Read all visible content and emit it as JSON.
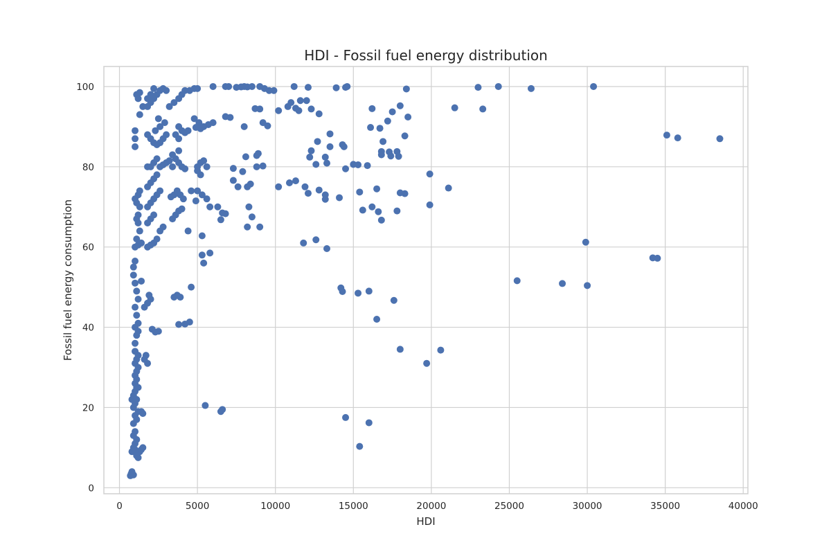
{
  "colors": {
    "point": "#4c72b0",
    "grid": "#d0d0d0",
    "text": "#262626",
    "background": "#ffffff"
  },
  "chart_data": {
    "type": "scatter",
    "title": "HDI - Fossil fuel energy distribution",
    "xlabel": "HDI",
    "ylabel": "Fossil fuel energy consumption",
    "xlim": [
      -1000,
      40300
    ],
    "ylim": [
      -1.5,
      105
    ],
    "xticks": [
      0,
      5000,
      10000,
      15000,
      20000,
      25000,
      30000,
      35000,
      40000
    ],
    "yticks": [
      0,
      20,
      40,
      60,
      80,
      100
    ],
    "grid": true,
    "legend": "none",
    "points": [
      [
        700,
        3
      ],
      [
        750,
        3.5
      ],
      [
        800,
        4
      ],
      [
        900,
        3.2
      ],
      [
        800,
        9
      ],
      [
        900,
        10
      ],
      [
        1000,
        9.5
      ],
      [
        1100,
        8
      ],
      [
        1200,
        7.5
      ],
      [
        1300,
        9
      ],
      [
        1400,
        9.5
      ],
      [
        1500,
        10
      ],
      [
        1000,
        11
      ],
      [
        1100,
        12
      ],
      [
        900,
        13
      ],
      [
        1000,
        14
      ],
      [
        900,
        16
      ],
      [
        1000,
        18
      ],
      [
        1100,
        17
      ],
      [
        1200,
        19
      ],
      [
        900,
        20
      ],
      [
        1000,
        21
      ],
      [
        1100,
        22
      ],
      [
        800,
        22
      ],
      [
        900,
        23
      ],
      [
        1000,
        24
      ],
      [
        1100,
        25
      ],
      [
        1200,
        25
      ],
      [
        1000,
        26
      ],
      [
        1100,
        27
      ],
      [
        1000,
        28
      ],
      [
        1100,
        29
      ],
      [
        1200,
        30
      ],
      [
        1000,
        31
      ],
      [
        1100,
        32
      ],
      [
        1200,
        33
      ],
      [
        1500,
        18.5
      ],
      [
        1400,
        19
      ],
      [
        1000,
        34
      ],
      [
        1000,
        36
      ],
      [
        1100,
        38
      ],
      [
        1200,
        39
      ],
      [
        1000,
        40
      ],
      [
        1200,
        41
      ],
      [
        1100,
        43
      ],
      [
        1000,
        45
      ],
      [
        1200,
        47
      ],
      [
        1100,
        49
      ],
      [
        1000,
        51
      ],
      [
        1400,
        51.5
      ],
      [
        900,
        53
      ],
      [
        900,
        55
      ],
      [
        1000,
        56.5
      ],
      [
        1000,
        60
      ],
      [
        1200,
        60.5
      ],
      [
        1400,
        61
      ],
      [
        1100,
        62
      ],
      [
        1300,
        64
      ],
      [
        1200,
        66
      ],
      [
        1100,
        67
      ],
      [
        1200,
        68
      ],
      [
        1300,
        70
      ],
      [
        1100,
        71
      ],
      [
        1000,
        72
      ],
      [
        1200,
        73
      ],
      [
        1300,
        74
      ],
      [
        1800,
        60
      ],
      [
        2000,
        60.5
      ],
      [
        2200,
        61
      ],
      [
        2400,
        62
      ],
      [
        2600,
        64
      ],
      [
        2800,
        65
      ],
      [
        1800,
        66
      ],
      [
        2000,
        67
      ],
      [
        2200,
        68
      ],
      [
        1800,
        70
      ],
      [
        2000,
        71
      ],
      [
        2200,
        72
      ],
      [
        2400,
        73
      ],
      [
        2600,
        74
      ],
      [
        1800,
        75
      ],
      [
        2000,
        76
      ],
      [
        2200,
        77
      ],
      [
        2400,
        78
      ],
      [
        1800,
        80
      ],
      [
        2000,
        80
      ],
      [
        2200,
        81
      ],
      [
        2400,
        82
      ],
      [
        2600,
        80
      ],
      [
        2800,
        80.5
      ],
      [
        3000,
        81
      ],
      [
        3200,
        81.5
      ],
      [
        3400,
        80
      ],
      [
        1600,
        45
      ],
      [
        1800,
        46
      ],
      [
        2000,
        47
      ],
      [
        1900,
        48
      ],
      [
        2100,
        39.5
      ],
      [
        2300,
        38.8
      ],
      [
        2500,
        39
      ],
      [
        1600,
        32
      ],
      [
        1800,
        31
      ],
      [
        1700,
        33
      ],
      [
        1000,
        85
      ],
      [
        1000,
        87
      ],
      [
        1000,
        89
      ],
      [
        1300,
        93
      ],
      [
        1500,
        95
      ],
      [
        1200,
        97
      ],
      [
        1100,
        98
      ],
      [
        1300,
        98.5
      ],
      [
        1800,
        88
      ],
      [
        2000,
        87
      ],
      [
        2200,
        86
      ],
      [
        2400,
        85.5
      ],
      [
        2600,
        86
      ],
      [
        2800,
        87
      ],
      [
        3000,
        88
      ],
      [
        2300,
        89
      ],
      [
        2600,
        90
      ],
      [
        2900,
        91
      ],
      [
        2500,
        92
      ],
      [
        1800,
        95
      ],
      [
        2000,
        96
      ],
      [
        2200,
        97
      ],
      [
        2400,
        98
      ],
      [
        2600,
        99
      ],
      [
        2800,
        99.5
      ],
      [
        3000,
        99
      ],
      [
        2200,
        99.5
      ],
      [
        2000,
        98
      ],
      [
        1800,
        97
      ],
      [
        3200,
        95
      ],
      [
        3500,
        96
      ],
      [
        3800,
        97
      ],
      [
        4000,
        98
      ],
      [
        4200,
        99
      ],
      [
        4500,
        99
      ],
      [
        4800,
        99.5
      ],
      [
        5000,
        99.5
      ],
      [
        3800,
        90
      ],
      [
        4000,
        89
      ],
      [
        4200,
        88.5
      ],
      [
        4400,
        89
      ],
      [
        3600,
        88
      ],
      [
        3800,
        87
      ],
      [
        3400,
        83
      ],
      [
        3600,
        82
      ],
      [
        3800,
        81
      ],
      [
        4000,
        80
      ],
      [
        4200,
        79.5
      ],
      [
        3800,
        84
      ],
      [
        3500,
        73
      ],
      [
        3700,
        74
      ],
      [
        3900,
        73
      ],
      [
        4100,
        72
      ],
      [
        3300,
        72.5
      ],
      [
        3400,
        67
      ],
      [
        3600,
        68
      ],
      [
        3800,
        69
      ],
      [
        4000,
        69.5
      ],
      [
        4400,
        64
      ],
      [
        3500,
        47.5
      ],
      [
        3700,
        48
      ],
      [
        3900,
        47.5
      ],
      [
        4600,
        50
      ],
      [
        3800,
        40.7
      ],
      [
        4200,
        40.8
      ],
      [
        4500,
        41.3
      ],
      [
        4800,
        92
      ],
      [
        5100,
        91
      ],
      [
        5400,
        90
      ],
      [
        5700,
        90.5
      ],
      [
        6000,
        91
      ],
      [
        5200,
        89.5
      ],
      [
        4900,
        89.8
      ],
      [
        5000,
        80
      ],
      [
        5200,
        81
      ],
      [
        5400,
        81.5
      ],
      [
        5600,
        80
      ],
      [
        5000,
        79
      ],
      [
        5200,
        78
      ],
      [
        4600,
        74
      ],
      [
        5000,
        74
      ],
      [
        5300,
        73
      ],
      [
        5600,
        72
      ],
      [
        4900,
        71.5
      ],
      [
        5300,
        62.8
      ],
      [
        5300,
        58
      ],
      [
        5400,
        56
      ],
      [
        5800,
        58.5
      ],
      [
        5800,
        70
      ],
      [
        6300,
        70
      ],
      [
        6500,
        66.8
      ],
      [
        6600,
        68.5
      ],
      [
        6800,
        68.3
      ],
      [
        5500,
        20.5
      ],
      [
        6500,
        19
      ],
      [
        6600,
        19.5
      ],
      [
        6000,
        100
      ],
      [
        6800,
        100
      ],
      [
        7000,
        100
      ],
      [
        7500,
        99.8
      ],
      [
        7800,
        99.9
      ],
      [
        8000,
        100
      ],
      [
        8200,
        99.9
      ],
      [
        8500,
        100
      ],
      [
        9000,
        100
      ],
      [
        9300,
        99.5
      ],
      [
        9600,
        99
      ],
      [
        9900,
        99
      ],
      [
        6800,
        92.5
      ],
      [
        7100,
        92.3
      ],
      [
        8000,
        90
      ],
      [
        8700,
        94.5
      ],
      [
        9000,
        94.4
      ],
      [
        9200,
        91
      ],
      [
        9500,
        90.2
      ],
      [
        7300,
        79.6
      ],
      [
        7900,
        78.8
      ],
      [
        8100,
        82.5
      ],
      [
        8800,
        82.8
      ],
      [
        8900,
        83.3
      ],
      [
        8800,
        80
      ],
      [
        9200,
        80.2
      ],
      [
        7300,
        76.6
      ],
      [
        7600,
        75
      ],
      [
        8200,
        75
      ],
      [
        8400,
        75.7
      ],
      [
        8300,
        70
      ],
      [
        8200,
        65
      ],
      [
        8500,
        67.5
      ],
      [
        9000,
        65
      ],
      [
        10200,
        94
      ],
      [
        10800,
        95
      ],
      [
        11000,
        96
      ],
      [
        11300,
        94.6
      ],
      [
        11500,
        94
      ],
      [
        11600,
        96.5
      ],
      [
        12000,
        96.5
      ],
      [
        12300,
        94.4
      ],
      [
        12800,
        93.2
      ],
      [
        11200,
        100
      ],
      [
        12100,
        99.8
      ],
      [
        13900,
        99.7
      ],
      [
        14500,
        99.8
      ],
      [
        14600,
        100
      ],
      [
        12200,
        82.4
      ],
      [
        12300,
        84
      ],
      [
        12600,
        80.6
      ],
      [
        12700,
        86.3
      ],
      [
        13200,
        82.4
      ],
      [
        13300,
        80.9
      ],
      [
        13500,
        85
      ],
      [
        13500,
        88.2
      ],
      [
        14300,
        85.5
      ],
      [
        14400,
        85
      ],
      [
        14500,
        79.5
      ],
      [
        15000,
        80.6
      ],
      [
        15300,
        80.5
      ],
      [
        15900,
        80.3
      ],
      [
        10200,
        75
      ],
      [
        10900,
        76
      ],
      [
        11300,
        76.5
      ],
      [
        11900,
        75
      ],
      [
        12100,
        73.4
      ],
      [
        12800,
        74.2
      ],
      [
        13200,
        71.9
      ],
      [
        13200,
        73
      ],
      [
        14100,
        72.3
      ],
      [
        15400,
        73.7
      ],
      [
        15600,
        69.2
      ],
      [
        16200,
        70
      ],
      [
        16500,
        74.5
      ],
      [
        16600,
        68.8
      ],
      [
        16800,
        66.7
      ],
      [
        11800,
        61
      ],
      [
        12600,
        61.8
      ],
      [
        13300,
        59.6
      ],
      [
        14200,
        49.8
      ],
      [
        14300,
        48.9
      ],
      [
        15300,
        48.5
      ],
      [
        16000,
        49
      ],
      [
        16500,
        42
      ],
      [
        17600,
        46.7
      ],
      [
        14500,
        17.5
      ],
      [
        15400,
        10.3
      ],
      [
        16000,
        16.2
      ],
      [
        16100,
        89.8
      ],
      [
        16200,
        94.5
      ],
      [
        16700,
        89.6
      ],
      [
        16800,
        83.8
      ],
      [
        16800,
        83
      ],
      [
        16900,
        86.3
      ],
      [
        17200,
        91.4
      ],
      [
        17300,
        83.7
      ],
      [
        17400,
        82.7
      ],
      [
        17500,
        93.7
      ],
      [
        17800,
        83.8
      ],
      [
        17900,
        82.6
      ],
      [
        18000,
        95.2
      ],
      [
        18300,
        87.7
      ],
      [
        18500,
        92.4
      ],
      [
        18400,
        99.4
      ],
      [
        17800,
        69
      ],
      [
        18000,
        73.5
      ],
      [
        18300,
        73.3
      ],
      [
        18000,
        34.5
      ],
      [
        19700,
        31
      ],
      [
        20600,
        34.3
      ],
      [
        19900,
        78.2
      ],
      [
        19900,
        70.5
      ],
      [
        21100,
        74.7
      ],
      [
        21500,
        94.7
      ],
      [
        23000,
        99.8
      ],
      [
        23300,
        94.4
      ],
      [
        24300,
        100
      ],
      [
        26400,
        99.5
      ],
      [
        30400,
        100
      ],
      [
        25500,
        51.6
      ],
      [
        28400,
        50.9
      ],
      [
        29900,
        61.2
      ],
      [
        30000,
        50.4
      ],
      [
        34200,
        57.3
      ],
      [
        34500,
        57.2
      ],
      [
        35100,
        87.9
      ],
      [
        35800,
        87.2
      ],
      [
        38500,
        87
      ]
    ]
  }
}
